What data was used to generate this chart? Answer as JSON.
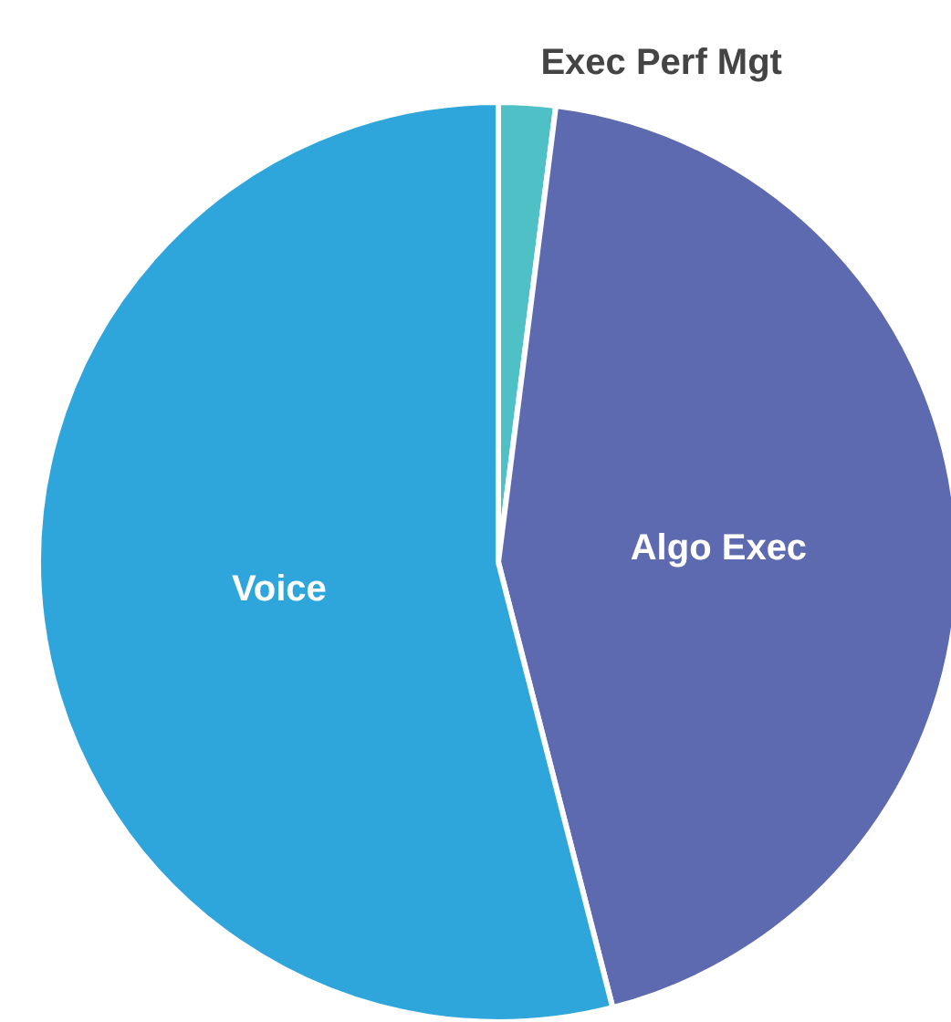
{
  "chart_data": {
    "type": "pie",
    "categories": [
      "Exec Perf Mgt",
      "Algo Exec",
      "Voice"
    ],
    "values": [
      2,
      44,
      54
    ],
    "colors": [
      "#4fc1c6",
      "#5e6ab0",
      "#2ea6dc"
    ]
  }
}
